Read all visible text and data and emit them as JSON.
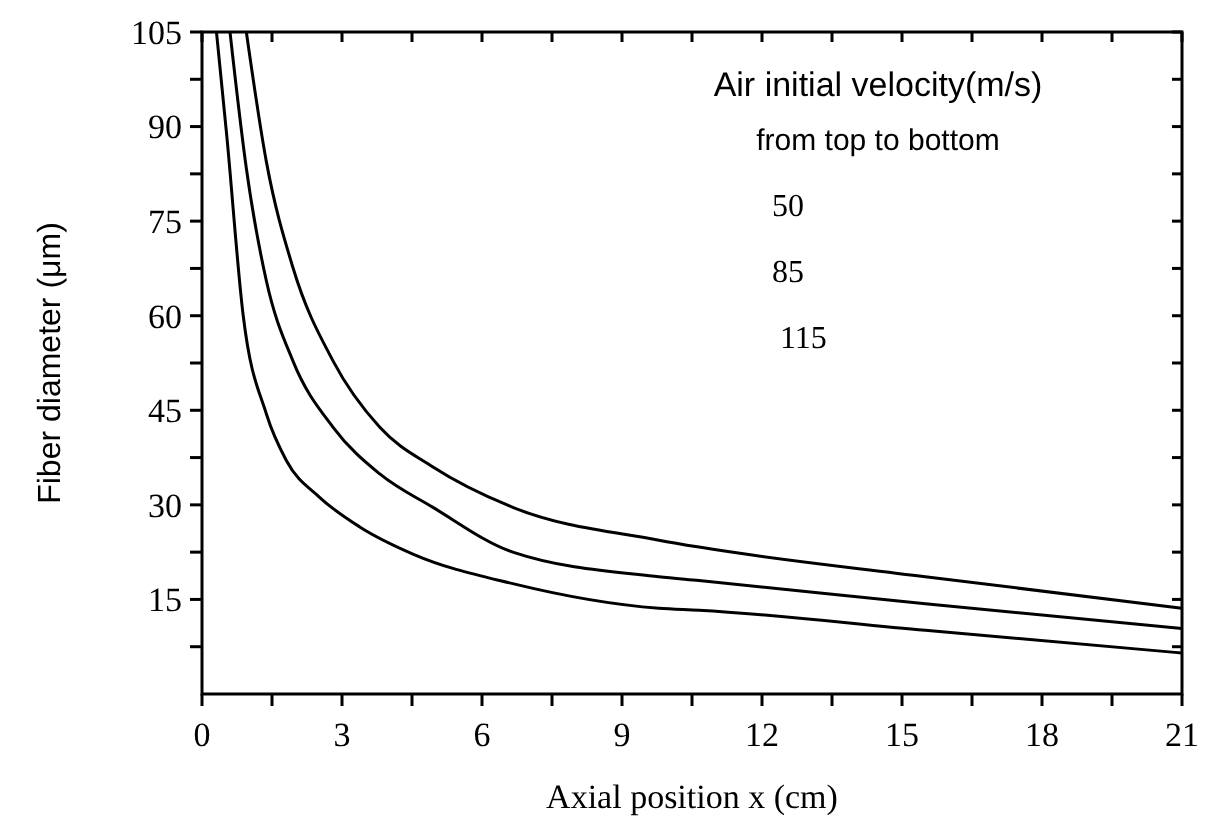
{
  "chart_data": {
    "type": "line",
    "xlabel": "Axial position x (cm)",
    "ylabel": "Fiber diameter (μm)",
    "annotations": [
      "Air initial velocity(m/s)",
      "from top to bottom",
      "50",
      "85",
      "115"
    ],
    "xlim": [
      0,
      21
    ],
    "xticks": [
      0,
      {
        "value": 1.5,
        "label": null
      },
      3,
      {
        "value": 4.5,
        "label": null
      },
      6,
      {
        "value": 7.5,
        "label": null
      },
      9,
      {
        "value": 10.5,
        "label": null
      },
      12,
      {
        "value": 13.5,
        "label": null
      },
      15,
      {
        "value": 16.5,
        "label": null
      },
      18,
      {
        "value": 19.5,
        "label": null
      },
      21
    ],
    "ylim": [
      0,
      105
    ],
    "yticks": [
      {
        "value": 7.5,
        "label": null
      },
      15,
      {
        "value": 22.5,
        "label": null
      },
      30,
      {
        "value": 37.5,
        "label": null
      },
      45,
      {
        "value": 52.5,
        "label": null
      },
      60,
      {
        "value": 67.5,
        "label": null
      },
      75,
      {
        "value": 82.5,
        "label": null
      },
      90,
      {
        "value": 97.5,
        "label": null
      },
      105
    ],
    "grid": false,
    "line_style": "solid",
    "series": [
      {
        "color": "#000000",
        "x": [
          0.95,
          1.38,
          1.95,
          2.81,
          3.81,
          4.95,
          6.66,
          9.79,
          10.65,
          15.5,
          21
        ],
        "values": [
          105,
          84.4,
          67.6,
          52.8,
          42.3,
          36,
          29.6,
          24.4,
          23.3,
          18.6,
          13.6
        ]
      },
      {
        "color": "#000000",
        "x": [
          0.6,
          0.95,
          1.38,
          1.95,
          2.81,
          3.81,
          4.95,
          6.66,
          9.79,
          10.65,
          15.5,
          21
        ],
        "values": [
          105,
          83.4,
          65.5,
          52.8,
          42.3,
          34.9,
          29.6,
          22.5,
          18.6,
          18,
          14.3,
          10.4
        ]
      },
      {
        "color": "#000000",
        "x": [
          0.31,
          0.53,
          0.88,
          1.38,
          1.81,
          2.52,
          3.38,
          4.52,
          6.66,
          9.79,
          10.65,
          15.5,
          21
        ],
        "values": [
          105,
          88.6,
          60.2,
          44.4,
          37,
          31.2,
          26.5,
          22.2,
          17.5,
          13.6,
          13.3,
          10.1,
          6.5
        ]
      }
    ]
  }
}
